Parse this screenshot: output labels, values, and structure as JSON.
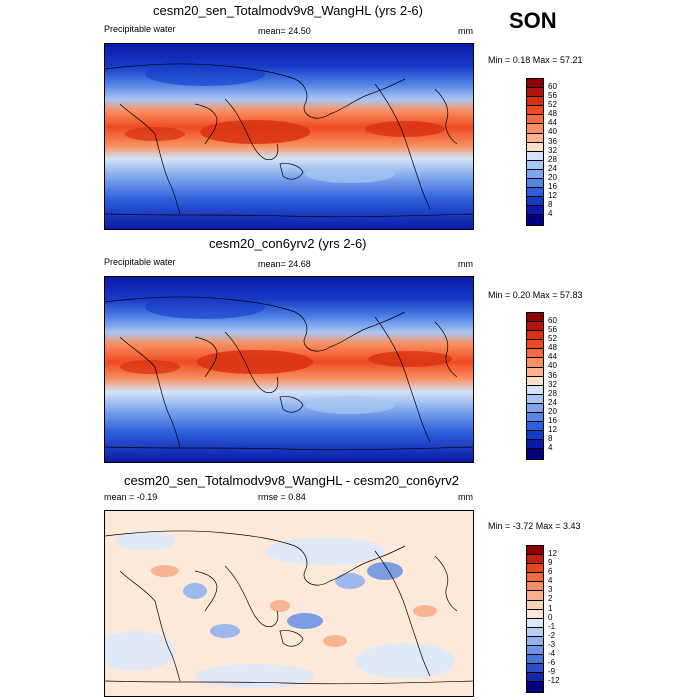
{
  "season": "SON",
  "panels": [
    {
      "title": "cesm20_sen_Totalmodv9v8_WangHL (yrs 2-6)",
      "left_label": "Precipitable water",
      "center_label": "mean=  24.50",
      "right_label": "mm",
      "minmax": "Min =   0.18 Max =  57.21",
      "levels": [
        "60",
        "56",
        "52",
        "48",
        "44",
        "40",
        "36",
        "32",
        "28",
        "24",
        "20",
        "16",
        "12",
        "8",
        "4"
      ],
      "colors": [
        "#8b0000",
        "#b2160a",
        "#d93113",
        "#ef4b22",
        "#f56b3e",
        "#f89062",
        "#fbb58e",
        "#fde0c9",
        "#d5e3f8",
        "#aac6f2",
        "#7ea6ec",
        "#5484e6",
        "#2e5fdc",
        "#163bc8",
        "#0a1aa8",
        "#000080"
      ]
    },
    {
      "title": "cesm20_con6yrv2 (yrs 2-6)",
      "left_label": "Precipitable water",
      "center_label": "mean=  24.68",
      "right_label": "mm",
      "minmax": "Min =   0.20 Max =  57.83",
      "levels": [
        "60",
        "56",
        "52",
        "48",
        "44",
        "40",
        "36",
        "32",
        "28",
        "24",
        "20",
        "16",
        "12",
        "8",
        "4"
      ],
      "colors": [
        "#8b0000",
        "#b2160a",
        "#d93113",
        "#ef4b22",
        "#f56b3e",
        "#f89062",
        "#fbb58e",
        "#fde0c9",
        "#d5e3f8",
        "#aac6f2",
        "#7ea6ec",
        "#5484e6",
        "#2e5fdc",
        "#163bc8",
        "#0a1aa8",
        "#000080"
      ]
    },
    {
      "title": "cesm20_sen_Totalmodv9v8_WangHL - cesm20_con6yrv2",
      "left_label": "mean =  -0.19",
      "center_label": "rmse =    0.84",
      "right_label": "mm",
      "minmax": "Min =  -3.72 Max =   3.43",
      "levels": [
        "12",
        "9",
        "6",
        "4",
        "3",
        "2",
        "1",
        "0",
        "-1",
        "-2",
        "-3",
        "-4",
        "-6",
        "-9",
        "-12"
      ],
      "colors": [
        "#8b0000",
        "#c0200f",
        "#e2461d",
        "#f16a3b",
        "#f68f60",
        "#f9b08a",
        "#fcd2b6",
        "#fde9d9",
        "#dce8f7",
        "#b9d0f2",
        "#93b3ec",
        "#6f95e4",
        "#4b74da",
        "#2c4fc9",
        "#1428aa",
        "#000080"
      ]
    }
  ]
}
